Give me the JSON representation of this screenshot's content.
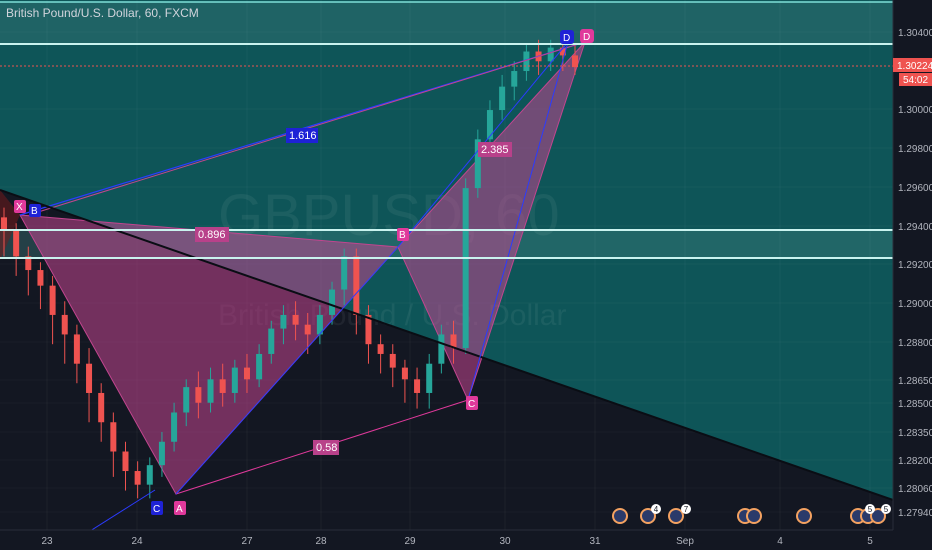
{
  "header": {
    "title": "British Pound/U.S. Dollar, 60, FXCM"
  },
  "watermark": {
    "symbol": "GBPUSD, 60",
    "name": "British Pound / U.S. Dollar"
  },
  "price_axis": {
    "ticks": [
      "1.30400",
      "1.30000",
      "1.29800",
      "1.29600",
      "1.29400",
      "1.29200",
      "1.29000",
      "1.28800",
      "1.28650",
      "1.28500",
      "1.28350",
      "1.28200",
      "1.28060",
      "1.27940"
    ],
    "current_price": "1.30224",
    "countdown": "54:02"
  },
  "time_axis": {
    "labels": [
      "23",
      "24",
      "27",
      "28",
      "29",
      "30",
      "31",
      "Sep",
      "4",
      "5"
    ]
  },
  "pattern": {
    "points": [
      "X",
      "B",
      "C",
      "A",
      "B",
      "C",
      "D",
      "D"
    ],
    "ratios": [
      "1.616",
      "0.896",
      "2.385",
      "0.58"
    ]
  },
  "event_badges": [
    "4",
    "7",
    "5",
    "5"
  ],
  "colors": {
    "background": "#131722",
    "teal_fill": "#0d6b6b",
    "pattern_fill": "#c2458f",
    "pattern_label": "#e0399b",
    "blue_label": "#1e22d6",
    "candle_up": "#26a69a",
    "candle_down": "#ef5350",
    "level_line": "#7fe0d8",
    "price_tag": "#ef5350"
  },
  "chart_data": {
    "type": "candlestick",
    "symbol": "British Pound/U.S. Dollar, 60, FXCM",
    "timeframe": "60",
    "ylim": [
      1.2788,
      1.3056
    ],
    "x_labels": [
      "23",
      "24",
      "27",
      "28",
      "29",
      "30",
      "31",
      "Sep",
      "4",
      "5"
    ],
    "current_price": 1.30224,
    "horizontal_levels": [
      1.3055,
      1.3034,
      1.2938,
      1.2923
    ],
    "harmonic_points": [
      {
        "label": "X",
        "price": 1.2944
      },
      {
        "label": "A",
        "price": 1.2801
      },
      {
        "label": "B",
        "price": 1.2929
      },
      {
        "label": "C",
        "price": 1.2847
      },
      {
        "label": "D",
        "price": 1.3033
      }
    ],
    "ratios": [
      {
        "label": "1.616",
        "value": 1.616
      },
      {
        "label": "0.896",
        "value": 0.896
      },
      {
        "label": "2.385",
        "value": 2.385
      },
      {
        "label": "0.58",
        "value": 0.58
      }
    ],
    "candles_approx": [
      [
        1.2945,
        1.2938,
        1.2925,
        1.295
      ],
      [
        1.2938,
        1.2925,
        1.2915,
        1.2942
      ],
      [
        1.2925,
        1.2918,
        1.2905,
        1.293
      ],
      [
        1.2918,
        1.291,
        1.2898,
        1.2922
      ],
      [
        1.291,
        1.2895,
        1.288,
        1.2915
      ],
      [
        1.2895,
        1.2885,
        1.287,
        1.2902
      ],
      [
        1.2885,
        1.287,
        1.286,
        1.289
      ],
      [
        1.287,
        1.2855,
        1.284,
        1.2878
      ],
      [
        1.2855,
        1.284,
        1.283,
        1.286
      ],
      [
        1.284,
        1.2825,
        1.2812,
        1.2845
      ],
      [
        1.2825,
        1.2815,
        1.2805,
        1.283
      ],
      [
        1.2815,
        1.2808,
        1.2801,
        1.282
      ],
      [
        1.2808,
        1.2818,
        1.2801,
        1.2822
      ],
      [
        1.2818,
        1.283,
        1.2812,
        1.2835
      ],
      [
        1.283,
        1.2845,
        1.2825,
        1.285
      ],
      [
        1.2845,
        1.2858,
        1.2838,
        1.2862
      ],
      [
        1.2858,
        1.285,
        1.2842,
        1.2866
      ],
      [
        1.285,
        1.2862,
        1.2845,
        1.2868
      ],
      [
        1.2862,
        1.2855,
        1.2848,
        1.287
      ],
      [
        1.2855,
        1.2868,
        1.285,
        1.2872
      ],
      [
        1.2868,
        1.2862,
        1.2855,
        1.2875
      ],
      [
        1.2862,
        1.2875,
        1.2858,
        1.288
      ],
      [
        1.2875,
        1.2888,
        1.287,
        1.2892
      ],
      [
        1.2888,
        1.2895,
        1.288,
        1.29
      ],
      [
        1.2895,
        1.289,
        1.2882,
        1.2902
      ],
      [
        1.289,
        1.2885,
        1.2875,
        1.2896
      ],
      [
        1.2885,
        1.2895,
        1.288,
        1.29
      ],
      [
        1.2895,
        1.2908,
        1.289,
        1.2912
      ],
      [
        1.2908,
        1.2925,
        1.29,
        1.2929
      ],
      [
        1.2925,
        1.2895,
        1.2885,
        1.2929
      ],
      [
        1.2895,
        1.288,
        1.287,
        1.29
      ],
      [
        1.288,
        1.2875,
        1.2865,
        1.2885
      ],
      [
        1.2875,
        1.2868,
        1.2858,
        1.288
      ],
      [
        1.2868,
        1.2862,
        1.285,
        1.2872
      ],
      [
        1.2862,
        1.2855,
        1.2847,
        1.2868
      ],
      [
        1.2855,
        1.287,
        1.2847,
        1.2875
      ],
      [
        1.287,
        1.2885,
        1.2865,
        1.289
      ],
      [
        1.2885,
        1.2878,
        1.287,
        1.2892
      ],
      [
        1.2878,
        1.296,
        1.2875,
        1.2965
      ],
      [
        1.296,
        1.2985,
        1.2955,
        1.299
      ],
      [
        1.2985,
        1.3,
        1.2978,
        1.3005
      ],
      [
        1.3,
        1.3012,
        1.2995,
        1.3018
      ],
      [
        1.3012,
        1.302,
        1.3005,
        1.3025
      ],
      [
        1.302,
        1.303,
        1.3015,
        1.3034
      ],
      [
        1.303,
        1.3025,
        1.3018,
        1.3036
      ],
      [
        1.3025,
        1.3032,
        1.302,
        1.3036
      ],
      [
        1.3032,
        1.3028,
        1.302,
        1.3036
      ],
      [
        1.3028,
        1.3022,
        1.3018,
        1.3034
      ]
    ]
  }
}
